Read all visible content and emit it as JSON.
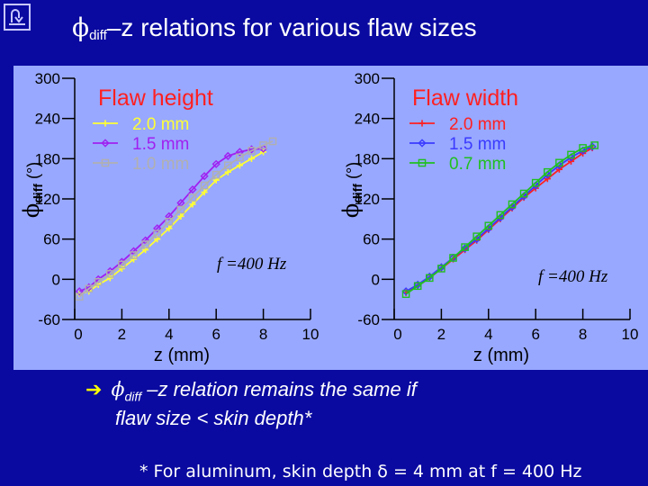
{
  "slide": {
    "title_sym": "ϕ",
    "title_sub": "diff",
    "title_rest": "–z relations for various flaw sizes",
    "bullet_sym": "ϕ",
    "bullet_sub": "diff",
    "bullet_line1": "–z relation remains the same if",
    "bullet_line2": "flaw size < skin depth*",
    "footnote": "* For aluminum, skin depth δ = 4 mm at f = 400 Hz",
    "colors": {
      "background": "#0a0aa0",
      "panel": "#98a8ff",
      "title": "#ff2020",
      "arrow": "#ffff00"
    },
    "icons": {
      "home": "home-return-icon",
      "bullet": "arrow-bullet-icon"
    }
  },
  "chart_data": [
    {
      "type": "line",
      "title": "Flaw height",
      "xlabel": "z (mm)",
      "ylabel": "ϕdiff (°)",
      "ylabel_sym": "ϕ",
      "ylabel_sub": "diff",
      "ylabel_unit": "(°)",
      "xlim": [
        0,
        10
      ],
      "ylim": [
        -60,
        300
      ],
      "xticks": [
        "0",
        "2",
        "4",
        "6",
        "8",
        "10"
      ],
      "yticks": [
        "-60",
        "0",
        "60",
        "120",
        "180",
        "240",
        "300"
      ],
      "annotation": "f =400 Hz",
      "legend_position": "upper-left",
      "grid": false,
      "series": [
        {
          "name": "2.0 mm",
          "marker": "plus",
          "color": "#ffff33",
          "x": [
            0.2,
            0.6,
            1.0,
            1.5,
            2.0,
            2.5,
            3.0,
            3.5,
            4.0,
            4.5,
            5.0,
            5.5,
            6.0,
            6.5,
            7.0,
            7.5,
            8.0
          ],
          "y": [
            -22,
            -18,
            -8,
            2,
            16,
            30,
            44,
            60,
            76,
            94,
            112,
            130,
            148,
            160,
            170,
            180,
            190
          ]
        },
        {
          "name": "1.5 mm",
          "marker": "diamond",
          "color": "#a020f0",
          "x": [
            0.2,
            0.6,
            1.0,
            1.5,
            2.0,
            2.5,
            3.0,
            3.5,
            4.0,
            4.5,
            5.0,
            5.5,
            6.0,
            6.5,
            7.0,
            7.5,
            8.0
          ],
          "y": [
            -18,
            -12,
            0,
            12,
            26,
            42,
            58,
            76,
            94,
            114,
            134,
            154,
            172,
            184,
            190,
            194,
            195
          ]
        },
        {
          "name": "1.0 mm",
          "marker": "square",
          "color": "#b0b0b0",
          "x": [
            0.2,
            0.6,
            1.0,
            1.5,
            2.0,
            2.5,
            3.0,
            3.5,
            4.0,
            4.5,
            5.0,
            5.5,
            6.0,
            6.5,
            7.0,
            7.5,
            8.0,
            8.4
          ],
          "y": [
            -26,
            -14,
            -4,
            8,
            22,
            36,
            52,
            68,
            86,
            104,
            122,
            140,
            156,
            170,
            182,
            192,
            200,
            206
          ]
        }
      ]
    },
    {
      "type": "line",
      "title": "Flaw width",
      "xlabel": "z (mm)",
      "ylabel": "ϕdiff (°)",
      "ylabel_sym": "ϕ",
      "ylabel_sub": "diff",
      "ylabel_unit": "(°)",
      "xlim": [
        0,
        10
      ],
      "ylim": [
        -60,
        300
      ],
      "xticks": [
        "0",
        "2",
        "4",
        "6",
        "8",
        "10"
      ],
      "yticks": [
        "-60",
        "0",
        "60",
        "120",
        "180",
        "240",
        "300"
      ],
      "annotation": "f =400 Hz",
      "legend_position": "upper-left",
      "grid": false,
      "series": [
        {
          "name": "2.0 mm",
          "marker": "plus",
          "color": "#ff2020",
          "x": [
            0.5,
            1.0,
            1.5,
            2.0,
            2.5,
            3.0,
            3.5,
            4.0,
            4.5,
            5.0,
            5.5,
            6.0,
            6.5,
            7.0,
            7.5,
            8.0,
            8.4
          ],
          "y": [
            -20,
            -10,
            2,
            16,
            30,
            44,
            58,
            74,
            90,
            106,
            122,
            136,
            150,
            164,
            176,
            188,
            196
          ]
        },
        {
          "name": "1.5 mm",
          "marker": "diamond",
          "color": "#3a3aff",
          "x": [
            0.5,
            1.0,
            1.5,
            2.0,
            2.5,
            3.0,
            3.5,
            4.0,
            4.5,
            5.0,
            5.5,
            6.0,
            6.5,
            7.0,
            7.5,
            8.0,
            8.4
          ],
          "y": [
            -18,
            -8,
            4,
            18,
            32,
            46,
            60,
            76,
            92,
            108,
            124,
            140,
            156,
            170,
            182,
            192,
            198
          ]
        },
        {
          "name": "0.7 mm",
          "marker": "square",
          "color": "#20c020",
          "x": [
            0.5,
            1.0,
            1.5,
            2.0,
            2.5,
            3.0,
            3.5,
            4.0,
            4.5,
            5.0,
            5.5,
            6.0,
            6.5,
            7.0,
            7.5,
            8.0,
            8.5
          ],
          "y": [
            -22,
            -10,
            2,
            16,
            32,
            48,
            64,
            80,
            96,
            112,
            128,
            144,
            160,
            174,
            186,
            196,
            200
          ]
        }
      ]
    }
  ]
}
